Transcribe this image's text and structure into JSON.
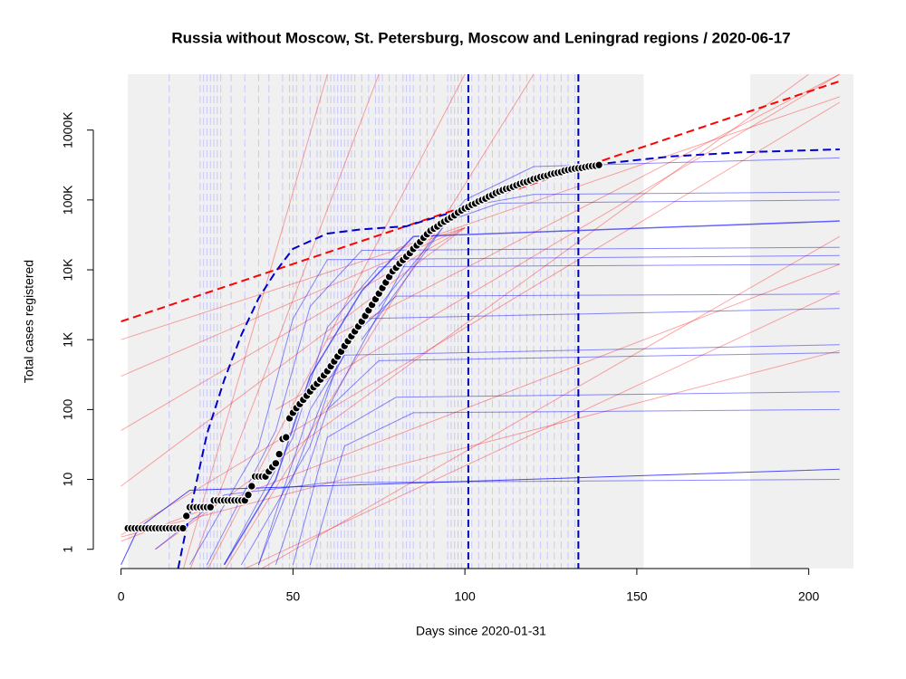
{
  "chart_data": {
    "type": "scatter",
    "title": "Russia without Moscow, St. Petersburg, Moscow and Leningrad regions / 2020-06-17",
    "x_label": "Days since 2020-01-31",
    "y_label": "Total cases registered",
    "log_y": true,
    "xlim": [
      -2,
      213
    ],
    "ylim": [
      0.53,
      6300000
    ],
    "xticks": [
      0,
      50,
      100,
      150,
      200
    ],
    "yticks": [
      1,
      10,
      100,
      {
        "value": 1000,
        "label": "1K"
      },
      {
        "value": 10000,
        "label": "10K"
      },
      {
        "value": 100000,
        "label": "100K"
      },
      {
        "value": 1000000,
        "label": "1000K"
      }
    ],
    "shaded_ranges": [
      [
        2,
        152
      ],
      [
        183,
        213
      ]
    ],
    "shade_color": "#f0f0f0",
    "faint_lines": {
      "color": "#aaaaff",
      "x": [
        14,
        23,
        24,
        25,
        26,
        27,
        28,
        29,
        32,
        36,
        40,
        43,
        47,
        49,
        50,
        51,
        53,
        55,
        57,
        58,
        60,
        61,
        62,
        63,
        64,
        65,
        66,
        67,
        68,
        70,
        72,
        74,
        75,
        76,
        78,
        80,
        82,
        83,
        84,
        85,
        87,
        89,
        91,
        95,
        96,
        97,
        98,
        99,
        102,
        104,
        106,
        108,
        110,
        112,
        114,
        116,
        118,
        120,
        122,
        124,
        126,
        128,
        130,
        132
      ]
    },
    "marker_lines": {
      "color": "#0000aa",
      "x": [
        101,
        133
      ]
    },
    "series": [
      {
        "color": "#ff0000",
        "opacity": 0.35,
        "width": 1,
        "x": [
          0,
          209
        ],
        "values": [
          1.5,
          700
        ]
      },
      {
        "color": "#ff0000",
        "opacity": 0.35,
        "width": 1,
        "x": [
          0,
          209
        ],
        "values": [
          1.3,
          12000
        ]
      },
      {
        "color": "#ff0000",
        "opacity": 0.35,
        "width": 1,
        "x": [
          18,
          60
        ],
        "values": [
          0.5,
          6300000
        ]
      },
      {
        "color": "#ff0000",
        "opacity": 0.35,
        "width": 1,
        "x": [
          20,
          75
        ],
        "values": [
          0.5,
          6300000
        ]
      },
      {
        "color": "#ff0000",
        "opacity": 0.35,
        "width": 1,
        "x": [
          25,
          100
        ],
        "values": [
          0.5,
          6300000
        ]
      },
      {
        "color": "#ff0000",
        "opacity": 0.35,
        "width": 1,
        "x": [
          30,
          120
        ],
        "values": [
          0.5,
          6300000
        ]
      },
      {
        "color": "#ff0000",
        "opacity": 0.35,
        "width": 1,
        "x": [
          40,
          209
        ],
        "values": [
          0.5,
          30000
        ]
      },
      {
        "color": "#ff0000",
        "opacity": 0.35,
        "width": 1,
        "x": [
          35,
          209
        ],
        "values": [
          0.5,
          5000
        ]
      },
      {
        "color": "#ff0000",
        "opacity": 0.35,
        "width": 1,
        "x": [
          0,
          209
        ],
        "values": [
          1.6,
          2500000
        ]
      },
      {
        "color": "#ff0000",
        "opacity": 0.35,
        "width": 1,
        "x": [
          10,
          200
        ],
        "values": [
          1,
          6300000
        ]
      },
      {
        "color": "#ff0000",
        "opacity": 0.35,
        "width": 1,
        "x": [
          45,
          209
        ],
        "values": [
          100,
          6300000
        ]
      },
      {
        "color": "#ff0000",
        "opacity": 0.35,
        "width": 1,
        "x": [
          60,
          209
        ],
        "values": [
          1000,
          6300000
        ]
      },
      {
        "color": "#ff0000",
        "opacity": 0.35,
        "width": 1,
        "x": [
          80,
          209
        ],
        "values": [
          20000,
          3000000
        ]
      },
      {
        "color": "#ff0000",
        "opacity": 0.35,
        "width": 1,
        "x": [
          0,
          100
        ],
        "values": [
          1000,
          40000
        ]
      },
      {
        "color": "#ff0000",
        "opacity": 0.35,
        "width": 1,
        "x": [
          0,
          100
        ],
        "values": [
          300,
          40000
        ]
      },
      {
        "color": "#ff0000",
        "opacity": 0.35,
        "width": 1,
        "x": [
          0,
          100
        ],
        "values": [
          50,
          40000
        ]
      },
      {
        "color": "#ff0000",
        "opacity": 0.35,
        "width": 1,
        "x": [
          0,
          100
        ],
        "values": [
          8,
          40000
        ]
      },
      {
        "color": "#0000ff",
        "opacity": 0.45,
        "width": 1,
        "x": [
          20,
          40,
          50,
          60,
          209
        ],
        "values": [
          0.6,
          30,
          2000,
          14000,
          16000
        ]
      },
      {
        "color": "#0000ff",
        "opacity": 0.45,
        "width": 1,
        "x": [
          25,
          45,
          55,
          70,
          209
        ],
        "values": [
          0.6,
          50,
          3000,
          19000,
          21000
        ]
      },
      {
        "color": "#0000ff",
        "opacity": 0.45,
        "width": 1,
        "x": [
          30,
          50,
          60,
          75,
          209
        ],
        "values": [
          0.6,
          40,
          1500,
          11000,
          12000
        ]
      },
      {
        "color": "#0000ff",
        "opacity": 0.45,
        "width": 1,
        "x": [
          35,
          55,
          65,
          80,
          209
        ],
        "values": [
          0.6,
          30,
          900,
          4200,
          4500
        ]
      },
      {
        "color": "#0000ff",
        "opacity": 0.45,
        "width": 1,
        "x": [
          40,
          60,
          70,
          209
        ],
        "values": [
          0.6,
          200,
          2000,
          2800
        ]
      },
      {
        "color": "#0000ff",
        "opacity": 0.45,
        "width": 1,
        "x": [
          40,
          55,
          65,
          209
        ],
        "values": [
          0.6,
          100,
          600,
          850
        ]
      },
      {
        "color": "#0000ff",
        "opacity": 0.45,
        "width": 1,
        "x": [
          45,
          60,
          75,
          209
        ],
        "values": [
          0.6,
          100,
          500,
          650
        ]
      },
      {
        "color": "#0000ff",
        "opacity": 0.45,
        "width": 1,
        "x": [
          50,
          60,
          80,
          209
        ],
        "values": [
          0.6,
          40,
          150,
          180
        ]
      },
      {
        "color": "#0000ff",
        "opacity": 0.45,
        "width": 1,
        "x": [
          55,
          65,
          85,
          209
        ],
        "values": [
          0.6,
          30,
          90,
          100
        ]
      },
      {
        "color": "#0000ff",
        "opacity": 0.7,
        "width": 1,
        "x": [
          0,
          5,
          20,
          209
        ],
        "values": [
          0.6,
          2,
          7,
          14
        ]
      },
      {
        "color": "#0000ff",
        "opacity": 0.45,
        "width": 1,
        "x": [
          10,
          30,
          60,
          209
        ],
        "values": [
          1,
          6,
          9,
          10
        ]
      },
      {
        "color": "#0000ff",
        "opacity": 0.45,
        "width": 1,
        "x": [
          60,
          85,
          100,
          120,
          209
        ],
        "values": [
          100,
          20000,
          80000,
          120000,
          130000
        ]
      },
      {
        "color": "#0000ff",
        "opacity": 0.45,
        "width": 1,
        "x": [
          70,
          95,
          110,
          209
        ],
        "values": [
          1000,
          50000,
          90000,
          100000
        ]
      },
      {
        "color": "#0000ff",
        "opacity": 0.45,
        "width": 1,
        "x": [
          75,
          100,
          120,
          209
        ],
        "values": [
          3000,
          100000,
          300000,
          400000
        ]
      },
      {
        "color": "#0000ff",
        "opacity": 0.6,
        "width": 1.5,
        "x": [
          30,
          45,
          55,
          70,
          85,
          209
        ],
        "values": [
          0.6,
          10,
          300,
          5000,
          30000,
          50000
        ]
      },
      {
        "color": "#ff0000",
        "opacity": 1,
        "width": 2,
        "dashed": true,
        "x": [
          0,
          209
        ],
        "values": [
          1820,
          5000000
        ]
      },
      {
        "color": "#0000cc",
        "opacity": 1,
        "width": 2,
        "dashed": true,
        "x": [
          16.6,
          18.7,
          25,
          30,
          35,
          40,
          45,
          50,
          60,
          70,
          83,
          100,
          120,
          140,
          160,
          180,
          209
        ],
        "values": [
          0.53,
          1.7,
          45,
          265,
          1170,
          3900,
          9500,
          20000,
          33000,
          38000,
          42000,
          76000,
          200000,
          330000,
          420000,
          480000,
          530000
        ]
      }
    ],
    "points": {
      "x": [
        2,
        3,
        4,
        5,
        6,
        7,
        8,
        9,
        10,
        11,
        12,
        13,
        14,
        15,
        16,
        17,
        18,
        19,
        20,
        21,
        22,
        23,
        24,
        25,
        26,
        27,
        28,
        29,
        30,
        31,
        32,
        33,
        34,
        35,
        36,
        37,
        38,
        39,
        40,
        41,
        42,
        43,
        44,
        45,
        46,
        47,
        48,
        49,
        50,
        51,
        52,
        53,
        54,
        55,
        56,
        57,
        58,
        59,
        60,
        61,
        62,
        63,
        64,
        65,
        66,
        67,
        68,
        69,
        70,
        71,
        72,
        73,
        74,
        75,
        76,
        77,
        78,
        79,
        80,
        81,
        82,
        83,
        84,
        85,
        86,
        87,
        88,
        89,
        90,
        91,
        92,
        93,
        94,
        95,
        96,
        97,
        98,
        99,
        100,
        101,
        102,
        103,
        104,
        105,
        106,
        107,
        108,
        109,
        110,
        111,
        112,
        113,
        114,
        115,
        116,
        117,
        118,
        119,
        120,
        121,
        122,
        123,
        124,
        125,
        126,
        127,
        128,
        129,
        130,
        131,
        132,
        133,
        134,
        135,
        136,
        137,
        138,
        139
      ],
      "values": [
        2,
        2,
        2,
        2,
        2,
        2,
        2,
        2,
        2,
        2,
        2,
        2,
        2,
        2,
        2,
        2,
        2,
        3,
        4,
        4,
        4,
        4,
        4,
        4,
        4,
        5,
        5,
        5,
        5,
        5,
        5,
        5,
        5,
        5,
        5,
        6,
        8,
        11,
        11,
        11,
        11,
        13,
        15,
        17,
        23,
        38,
        40,
        75,
        90,
        105,
        120,
        138,
        158,
        182,
        209,
        234,
        269,
        309,
        355,
        417,
        490,
        575,
        676,
        813,
        955,
        1122,
        1318,
        1549,
        1820,
        2188,
        2630,
        3162,
        3802,
        4571,
        5495,
        6607,
        7943,
        9550,
        10715,
        12303,
        13804,
        15488,
        17378,
        19953,
        22387,
        25119,
        28840,
        32359,
        36308,
        38905,
        41687,
        45709,
        48978,
        52481,
        56234,
        60256,
        66069,
        70795,
        75858,
        79433,
        85114,
        89125,
        95499,
        100000,
        104713,
        112202,
        117490,
        125893,
        131826,
        138038,
        144544,
        147911,
        154882,
        162181,
        169824,
        177828,
        181970,
        190546,
        199526,
        204174,
        213796,
        218776,
        223872,
        234423,
        239883,
        245471,
        251189,
        263027,
        269153,
        275423,
        281838,
        285000,
        288403,
        295121,
        301995,
        306000,
        309030,
        316228
      ]
    }
  }
}
